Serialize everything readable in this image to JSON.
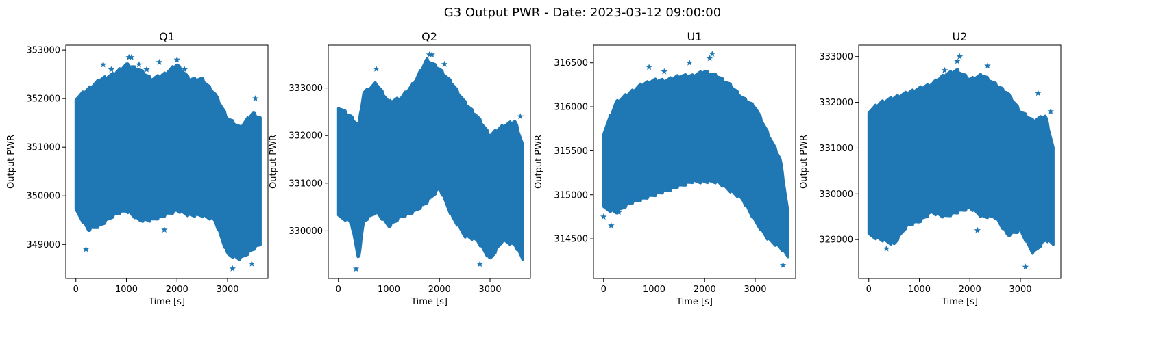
{
  "figure": {
    "title": "G3 Output PWR - Date: 2023-03-12 09:00:00"
  },
  "colors": {
    "series": "#1f77b4",
    "axes": "#000000",
    "background": "#ffffff"
  },
  "chart_data": [
    {
      "type": "scatter",
      "marker": "star",
      "title": "Q1",
      "xlabel": "Time [s]",
      "ylabel": "Output PWR",
      "xlim": [
        -200,
        3800
      ],
      "ylim": [
        348300,
        353100
      ],
      "xticks": [
        0,
        1000,
        2000,
        3000
      ],
      "yticks": [
        349000,
        350000,
        351000,
        352000,
        353000
      ],
      "xtick_labels": [
        "0",
        "1000",
        "2000",
        "3000"
      ],
      "ytick_labels": [
        "349000",
        "350000",
        "351000",
        "352000",
        "353000"
      ],
      "envelope": {
        "time": [
          0,
          250,
          500,
          750,
          1000,
          1250,
          1500,
          1750,
          2000,
          2250,
          2500,
          2750,
          3000,
          3250,
          3500,
          3650
        ],
        "upper": [
          352000,
          352200,
          352400,
          352500,
          352700,
          352600,
          352400,
          352500,
          352700,
          352400,
          352400,
          352100,
          351600,
          351400,
          351700,
          351600
        ],
        "lower": [
          349700,
          349300,
          349400,
          349600,
          349700,
          349500,
          349500,
          349600,
          349700,
          349600,
          349600,
          349500,
          348800,
          348700,
          348900,
          349000
        ]
      },
      "outliers": [
        [
          200,
          348900
        ],
        [
          540,
          352700
        ],
        [
          700,
          352600
        ],
        [
          1050,
          352850
        ],
        [
          1100,
          352850
        ],
        [
          1250,
          352700
        ],
        [
          1400,
          352600
        ],
        [
          1650,
          352750
        ],
        [
          1750,
          349300
        ],
        [
          2000,
          352800
        ],
        [
          2150,
          352600
        ],
        [
          3100,
          348500
        ],
        [
          3480,
          348600
        ],
        [
          3550,
          352000
        ]
      ]
    },
    {
      "type": "scatter",
      "marker": "star",
      "title": "Q2",
      "xlabel": "Time [s]",
      "ylabel": "Output PWR",
      "xlim": [
        -200,
        3800
      ],
      "ylim": [
        329000,
        333900
      ],
      "xticks": [
        0,
        1000,
        2000,
        3000
      ],
      "yticks": [
        330000,
        331000,
        332000,
        333000
      ],
      "xtick_labels": [
        "0",
        "1000",
        "2000",
        "3000"
      ],
      "ytick_labels": [
        "330000",
        "331000",
        "332000",
        "333000"
      ],
      "envelope": {
        "time": [
          0,
          250,
          400,
          500,
          750,
          1000,
          1250,
          1500,
          1750,
          2000,
          2250,
          2500,
          2750,
          3000,
          3250,
          3500,
          3650
        ],
        "upper": [
          332600,
          332400,
          332200,
          332900,
          333100,
          332700,
          332800,
          333100,
          333600,
          333400,
          333100,
          332700,
          332400,
          332000,
          332200,
          332300,
          331800
        ],
        "lower": [
          330300,
          330200,
          329400,
          330200,
          330400,
          330100,
          330300,
          330400,
          330600,
          330900,
          330300,
          329900,
          329800,
          329400,
          329800,
          329700,
          329400
        ]
      },
      "outliers": [
        [
          350,
          329200
        ],
        [
          750,
          333400
        ],
        [
          1500,
          333100
        ],
        [
          1800,
          333700
        ],
        [
          1850,
          333700
        ],
        [
          2100,
          333500
        ],
        [
          2800,
          329300
        ],
        [
          3050,
          332000
        ],
        [
          3600,
          332400
        ]
      ]
    },
    {
      "type": "scatter",
      "marker": "star",
      "title": "U1",
      "xlabel": "Time [s]",
      "ylabel": "Output PWR",
      "xlim": [
        -200,
        3800
      ],
      "ylim": [
        314050,
        316700
      ],
      "xticks": [
        0,
        1000,
        2000,
        3000
      ],
      "yticks": [
        314500,
        315000,
        315500,
        316000,
        316500
      ],
      "xtick_labels": [
        "0",
        "1000",
        "2000",
        "3000"
      ],
      "ytick_labels": [
        "314500",
        "315000",
        "315500",
        "316000",
        "316500"
      ],
      "envelope": {
        "time": [
          0,
          250,
          500,
          750,
          1000,
          1250,
          1500,
          1750,
          2000,
          2250,
          2500,
          2750,
          3000,
          3250,
          3500,
          3650
        ],
        "upper": [
          315700,
          316050,
          316150,
          316250,
          316300,
          316300,
          316350,
          316350,
          316400,
          316350,
          316250,
          316100,
          316000,
          315700,
          315400,
          314800
        ],
        "lower": [
          314850,
          314800,
          314900,
          314950,
          315000,
          315050,
          315100,
          315150,
          315150,
          315150,
          315050,
          314950,
          314700,
          314500,
          314400,
          314300
        ]
      },
      "outliers": [
        [
          0,
          314750
        ],
        [
          150,
          314650
        ],
        [
          300,
          314800
        ],
        [
          900,
          316450
        ],
        [
          1200,
          316400
        ],
        [
          1700,
          316500
        ],
        [
          2150,
          316600
        ],
        [
          2100,
          316550
        ],
        [
          3000,
          315700
        ],
        [
          3550,
          314200
        ]
      ]
    },
    {
      "type": "scatter",
      "marker": "star",
      "title": "U2",
      "xlabel": "Time [s]",
      "ylabel": "Output PWR",
      "xlim": [
        -200,
        3800
      ],
      "ylim": [
        328150,
        333250
      ],
      "xticks": [
        0,
        1000,
        2000,
        3000
      ],
      "yticks": [
        329000,
        330000,
        331000,
        332000,
        333000
      ],
      "xtick_labels": [
        "0",
        "1000",
        "2000",
        "3000"
      ],
      "ytick_labels": [
        "329000",
        "330000",
        "331000",
        "332000",
        "333000"
      ],
      "envelope": {
        "time": [
          0,
          250,
          500,
          750,
          1000,
          1250,
          1500,
          1750,
          2000,
          2250,
          2500,
          2750,
          3000,
          3250,
          3500,
          3650
        ],
        "upper": [
          331800,
          332000,
          332100,
          332200,
          332300,
          332400,
          332600,
          332700,
          332500,
          332600,
          332400,
          332200,
          331800,
          331600,
          331700,
          331000
        ],
        "lower": [
          329100,
          329000,
          328900,
          329300,
          329400,
          329600,
          329500,
          329600,
          329700,
          329500,
          329500,
          329100,
          329200,
          328700,
          329000,
          328900
        ]
      },
      "outliers": [
        [
          350,
          328800
        ],
        [
          1500,
          332700
        ],
        [
          1750,
          332900
        ],
        [
          1800,
          333000
        ],
        [
          2350,
          332800
        ],
        [
          2150,
          329200
        ],
        [
          3100,
          328400
        ],
        [
          3350,
          332200
        ],
        [
          3600,
          331800
        ]
      ]
    }
  ]
}
